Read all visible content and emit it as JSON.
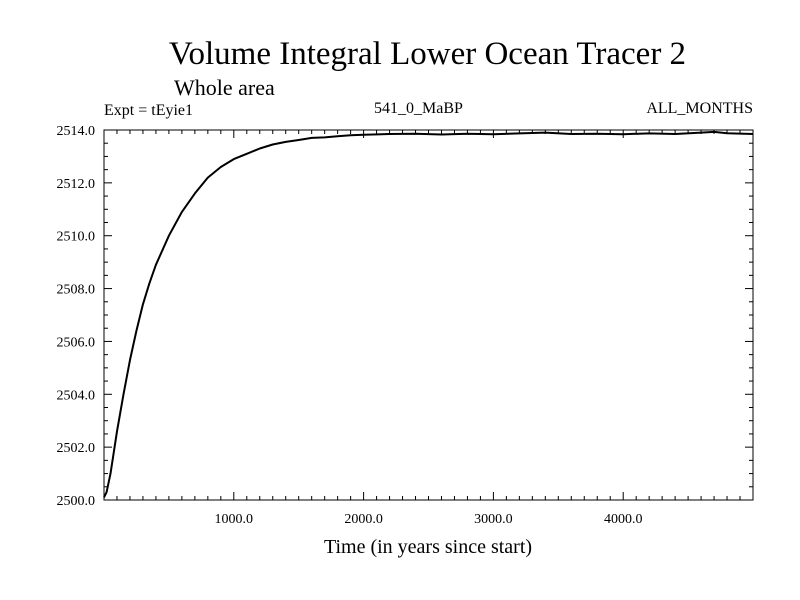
{
  "header": {
    "expt_label": "Expt = tEyie1",
    "period_label": "541_0_MaBP",
    "months_label": "ALL_MONTHS"
  },
  "chart_data": {
    "type": "line",
    "title": "Volume Integral Lower Ocean Tracer 2",
    "subtitle": "Whole area",
    "xlabel": "Time (in years since start)",
    "ylabel": "",
    "xlim": [
      0,
      5000
    ],
    "ylim": [
      2500.0,
      2514.0
    ],
    "xticks": [
      1000,
      2000,
      3000,
      4000
    ],
    "xtick_labels": [
      "1000.0",
      "2000.0",
      "3000.0",
      "4000.0"
    ],
    "yticks": [
      2500,
      2502,
      2504,
      2506,
      2508,
      2510,
      2512,
      2514
    ],
    "ytick_labels": [
      "2500.0",
      "2502.0",
      "2504.0",
      "2506.0",
      "2508.0",
      "2510.0",
      "2512.0",
      "2514.0"
    ],
    "grid": false,
    "series": [
      {
        "name": "Volume Integral Lower Ocean Tracer 2",
        "x": [
          0,
          20,
          50,
          100,
          150,
          200,
          250,
          300,
          350,
          400,
          500,
          600,
          700,
          800,
          900,
          1000,
          1100,
          1200,
          1300,
          1400,
          1500,
          1600,
          1700,
          1800,
          1900,
          2000,
          2200,
          2400,
          2600,
          2800,
          3000,
          3200,
          3400,
          3600,
          3800,
          4000,
          4200,
          4400,
          4600,
          4700,
          4800,
          5000
        ],
        "values": [
          2500.1,
          2500.3,
          2501.0,
          2502.6,
          2504.0,
          2505.3,
          2506.4,
          2507.4,
          2508.2,
          2508.9,
          2510.0,
          2510.9,
          2511.6,
          2512.2,
          2512.6,
          2512.9,
          2513.1,
          2513.3,
          2513.45,
          2513.55,
          2513.62,
          2513.7,
          2513.72,
          2513.76,
          2513.8,
          2513.82,
          2513.85,
          2513.86,
          2513.83,
          2513.86,
          2513.84,
          2513.87,
          2513.9,
          2513.85,
          2513.86,
          2513.84,
          2513.87,
          2513.85,
          2513.9,
          2513.93,
          2513.88,
          2513.85
        ]
      }
    ]
  }
}
